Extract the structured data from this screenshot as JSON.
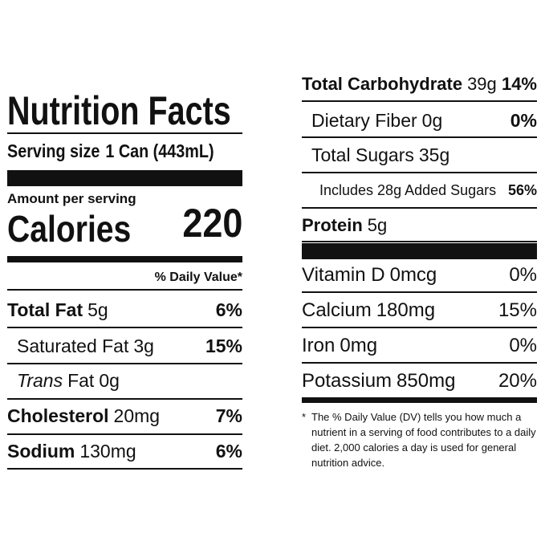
{
  "title": "Nutrition Facts",
  "serving_size": {
    "label": "Serving size",
    "value": "1 Can (443mL)"
  },
  "amount_per_serving": "Amount per serving",
  "calories": {
    "label": "Calories",
    "value": "220"
  },
  "dv_header": "% Daily Value*",
  "left_rows": [
    {
      "name": "Total Fat",
      "amount": "5g",
      "dv": "6%"
    },
    {
      "name": "Saturated Fat",
      "amount": "3g",
      "dv": "15%"
    },
    {
      "italic": "Trans",
      "name": "Fat",
      "amount": "0g"
    },
    {
      "name": "Cholesterol",
      "amount": "20mg",
      "dv": "7%"
    },
    {
      "name": "Sodium",
      "amount": "130mg",
      "dv": "6%"
    }
  ],
  "right_rows": [
    {
      "name": "Total Carbohydrate",
      "amount": "39g",
      "dv": "14%"
    },
    {
      "name": "Dietary Fiber",
      "amount": "0g",
      "dv": "0%"
    },
    {
      "name": "Total Sugars",
      "amount": "35g"
    },
    {
      "name": "Includes 28g Added Sugars",
      "dv": "56%"
    },
    {
      "name": "Protein",
      "amount": "5g"
    }
  ],
  "vitamins": [
    {
      "name": "Vitamin D",
      "amount": "0mcg",
      "dv": "0%"
    },
    {
      "name": "Calcium",
      "amount": "180mg",
      "dv": "15%"
    },
    {
      "name": "Iron",
      "amount": "0mg",
      "dv": "0%"
    },
    {
      "name": "Potassium",
      "amount": "850mg",
      "dv": "20%"
    }
  ],
  "footnote": {
    "marker": "*",
    "text": "The % Daily Value (DV) tells you how much a nutrient in a serving of food contributes to a daily diet. 2,000 calories a day is used for general nutrition advice."
  }
}
